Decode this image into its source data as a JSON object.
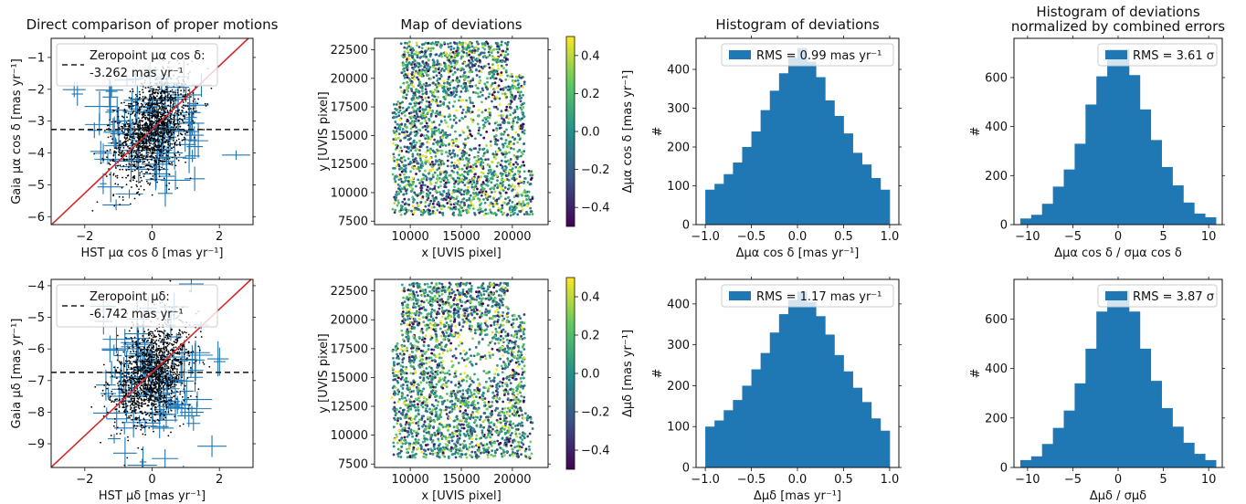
{
  "colors": {
    "hist": "#1f77b4",
    "errbar": "#1f77b4",
    "points": "#000000",
    "diag": "#d62728",
    "zeroline": "#222222"
  },
  "chart_data": [
    {
      "type": "scatter",
      "title": "Direct comparison of proper motions",
      "xlabel": "HST μα cos δ [mas yr⁻¹]",
      "ylabel": "Gaia μα cos δ [mas yr⁻¹]",
      "xlim": [
        -3,
        3
      ],
      "ylim": [
        -6.25,
        -0.4
      ],
      "xticks": [
        -2,
        0,
        2
      ],
      "xtick_labels": [
        "−2",
        "0",
        "2"
      ],
      "yticks": [
        -6,
        -5,
        -4,
        -3,
        -2,
        -1
      ],
      "ytick_labels": [
        "−6",
        "−5",
        "−4",
        "−3",
        "−2",
        "−1"
      ],
      "zeropoint": -3.262,
      "legend": {
        "line1": "Zeropoint μα cos δ:",
        "line2": "-3.262 mas yr⁻¹",
        "loc": "upper left"
      },
      "diagonal": {
        "slope": 1,
        "intercept": -3.262
      },
      "points": {
        "x_sigma": 0.55,
        "y_sigma": 0.75,
        "count_approx": 5000
      }
    },
    {
      "type": "scatter",
      "title": "Map of deviations",
      "xlabel": "x [UVIS pixel]",
      "ylabel": "y [UVIS pixel]",
      "xlim": [
        6500,
        23500
      ],
      "ylim": [
        7200,
        23500
      ],
      "xticks": [
        10000,
        15000,
        20000
      ],
      "xtick_labels": [
        "10000",
        "15000",
        "20000"
      ],
      "yticks": [
        7500,
        10000,
        12500,
        15000,
        17500,
        20000,
        22500
      ],
      "ytick_labels": [
        "7500",
        "10000",
        "12500",
        "15000",
        "17500",
        "20000",
        "22500"
      ],
      "colorbar": {
        "label": "Δμα cos δ   [mas yr⁻¹]",
        "range": [
          -0.5,
          0.5
        ],
        "ticks": [
          -0.4,
          -0.2,
          0.0,
          0.2,
          0.4
        ],
        "tick_labels": [
          "−0.4",
          "−0.2",
          "0.0",
          "0.2",
          "0.4"
        ],
        "cmap": "viridis"
      }
    },
    {
      "type": "bar",
      "title": "Histogram of deviations",
      "xlabel": "Δμα cos δ   [mas yr⁻¹]",
      "ylabel": "#",
      "xlim": [
        -1.1,
        1.1
      ],
      "ylim": [
        0,
        480
      ],
      "xticks": [
        -1.0,
        -0.5,
        0.0,
        0.5,
        1.0
      ],
      "xtick_labels": [
        "−1.0",
        "−0.5",
        "0.0",
        "0.5",
        "1.0"
      ],
      "yticks": [
        0,
        100,
        200,
        300,
        400
      ],
      "ytick_labels": [
        "0",
        "100",
        "200",
        "300",
        "400"
      ],
      "bin_edges": [
        -1.0,
        -0.9,
        -0.8,
        -0.7,
        -0.6,
        -0.5,
        -0.4,
        -0.3,
        -0.2,
        -0.1,
        0.0,
        0.1,
        0.2,
        0.3,
        0.4,
        0.5,
        0.6,
        0.7,
        0.8,
        0.9,
        1.0
      ],
      "values": [
        90,
        105,
        130,
        160,
        200,
        240,
        295,
        345,
        390,
        430,
        455,
        420,
        380,
        320,
        280,
        235,
        185,
        155,
        120,
        90
      ],
      "legend": {
        "text": "RMS = 0.99 mas yr⁻¹",
        "loc": "upper right"
      }
    },
    {
      "type": "bar",
      "title": "Histogram of deviations normalized by combined errors",
      "title_lines": [
        "Histogram of deviations",
        "normalized by combined errors"
      ],
      "xlabel": "Δμα cos δ / σμα cos δ",
      "ylabel": "#",
      "xlim": [
        -11.5,
        11.5
      ],
      "ylim": [
        0,
        760
      ],
      "xticks": [
        -10,
        -5,
        0,
        5,
        10
      ],
      "xtick_labels": [
        "−10",
        "−5",
        "0",
        "5",
        "10"
      ],
      "yticks": [
        0,
        200,
        400,
        600
      ],
      "ytick_labels": [
        "0",
        "200",
        "400",
        "600"
      ],
      "bin_edges": [
        -10.8,
        -9.6,
        -8.4,
        -7.2,
        -6.0,
        -4.8,
        -3.6,
        -2.4,
        -1.2,
        0.0,
        1.2,
        2.4,
        3.6,
        4.8,
        6.0,
        7.2,
        8.4,
        9.6,
        10.8
      ],
      "values": [
        25,
        40,
        85,
        155,
        225,
        330,
        490,
        605,
        715,
        715,
        610,
        470,
        345,
        235,
        160,
        90,
        45,
        30
      ],
      "legend": {
        "text": "RMS = 3.61 σ",
        "loc": "upper right"
      }
    },
    {
      "type": "scatter",
      "title": "",
      "xlabel": "HST μδ   [mas yr⁻¹]",
      "ylabel": "Gaia μδ   [mas yr⁻¹]",
      "xlim": [
        -3,
        3
      ],
      "ylim": [
        -9.75,
        -3.8
      ],
      "xticks": [
        -2,
        0,
        2
      ],
      "xtick_labels": [
        "−2",
        "0",
        "2"
      ],
      "yticks": [
        -9,
        -8,
        -7,
        -6,
        -5,
        -4
      ],
      "ytick_labels": [
        "−9",
        "−8",
        "−7",
        "−6",
        "−5",
        "−4"
      ],
      "zeropoint": -6.742,
      "legend": {
        "line1": "Zeropoint μδ:",
        "line2": "-6.742 mas yr⁻¹",
        "loc": "upper left"
      },
      "diagonal": {
        "slope": 1,
        "intercept": -6.742
      },
      "points": {
        "x_sigma": 0.55,
        "y_sigma": 0.75,
        "count_approx": 5000
      }
    },
    {
      "type": "scatter",
      "title": "",
      "xlabel": "x [UVIS pixel]",
      "ylabel": "y [UVIS pixel]",
      "xlim": [
        6500,
        23500
      ],
      "ylim": [
        7200,
        23500
      ],
      "xticks": [
        10000,
        15000,
        20000
      ],
      "xtick_labels": [
        "10000",
        "15000",
        "20000"
      ],
      "yticks": [
        7500,
        10000,
        12500,
        15000,
        17500,
        20000,
        22500
      ],
      "ytick_labels": [
        "7500",
        "10000",
        "12500",
        "15000",
        "17500",
        "20000",
        "22500"
      ],
      "colorbar": {
        "label": "Δμδ   [mas yr⁻¹]",
        "range": [
          -0.5,
          0.5
        ],
        "ticks": [
          -0.4,
          -0.2,
          0.0,
          0.2,
          0.4
        ],
        "tick_labels": [
          "−0.4",
          "−0.2",
          "0.0",
          "0.2",
          "0.4"
        ],
        "cmap": "viridis"
      }
    },
    {
      "type": "bar",
      "title": "",
      "xlabel": "Δμδ   [mas yr⁻¹]",
      "ylabel": "#",
      "xlim": [
        -1.1,
        1.1
      ],
      "ylim": [
        0,
        460
      ],
      "xticks": [
        -1.0,
        -0.5,
        0.0,
        0.5,
        1.0
      ],
      "xtick_labels": [
        "−1.0",
        "−0.5",
        "0.0",
        "0.5",
        "1.0"
      ],
      "yticks": [
        0,
        100,
        200,
        300,
        400
      ],
      "ytick_labels": [
        "0",
        "100",
        "200",
        "300",
        "400"
      ],
      "bin_edges": [
        -1.0,
        -0.9,
        -0.8,
        -0.7,
        -0.6,
        -0.5,
        -0.4,
        -0.3,
        -0.2,
        -0.1,
        0.0,
        0.1,
        0.2,
        0.3,
        0.4,
        0.5,
        0.6,
        0.7,
        0.8,
        0.9,
        1.0
      ],
      "values": [
        100,
        115,
        140,
        165,
        200,
        240,
        280,
        330,
        375,
        410,
        430,
        405,
        370,
        325,
        275,
        235,
        195,
        160,
        120,
        90
      ],
      "legend": {
        "text": "RMS = 1.17 mas yr⁻¹",
        "loc": "upper right"
      }
    },
    {
      "type": "bar",
      "title": "",
      "xlabel": "Δμδ / σμδ",
      "ylabel": "#",
      "xlim": [
        -11.5,
        11.5
      ],
      "ylim": [
        0,
        760
      ],
      "xticks": [
        -10,
        -5,
        0,
        5,
        10
      ],
      "xtick_labels": [
        "−10",
        "−5",
        "0",
        "5",
        "10"
      ],
      "yticks": [
        0,
        200,
        400,
        600
      ],
      "ytick_labels": [
        "0",
        "200",
        "400",
        "600"
      ],
      "bin_edges": [
        -10.8,
        -9.6,
        -8.4,
        -7.2,
        -6.0,
        -4.8,
        -3.6,
        -2.4,
        -1.2,
        0.0,
        1.2,
        2.4,
        3.6,
        4.8,
        6.0,
        7.2,
        8.4,
        9.6,
        10.8
      ],
      "values": [
        30,
        45,
        95,
        160,
        230,
        340,
        480,
        630,
        710,
        715,
        630,
        480,
        350,
        240,
        165,
        100,
        55,
        30
      ],
      "legend": {
        "text": "RMS = 3.87 σ",
        "loc": "upper right"
      }
    }
  ]
}
